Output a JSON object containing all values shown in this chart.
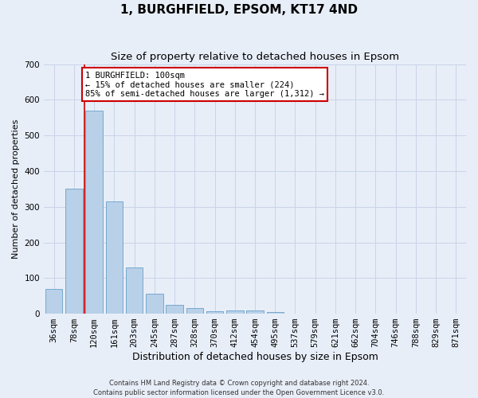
{
  "title": "1, BURGHFIELD, EPSOM, KT17 4ND",
  "subtitle": "Size of property relative to detached houses in Epsom",
  "xlabel": "Distribution of detached houses by size in Epsom",
  "ylabel": "Number of detached properties",
  "bar_values": [
    70,
    350,
    570,
    315,
    130,
    57,
    25,
    15,
    8,
    10,
    10,
    5,
    0,
    0,
    0,
    0,
    0,
    0,
    0,
    0,
    0
  ],
  "categories": [
    "36sqm",
    "78sqm",
    "120sqm",
    "161sqm",
    "203sqm",
    "245sqm",
    "287sqm",
    "328sqm",
    "370sqm",
    "412sqm",
    "454sqm",
    "495sqm",
    "537sqm",
    "579sqm",
    "621sqm",
    "662sqm",
    "704sqm",
    "746sqm",
    "788sqm",
    "829sqm",
    "871sqm"
  ],
  "bar_color": "#b8d0e8",
  "bar_edge_color": "#6aa0c8",
  "vline_color": "#cc0000",
  "annotation_text": "1 BURGHFIELD: 100sqm\n← 15% of detached houses are smaller (224)\n85% of semi-detached houses are larger (1,312) →",
  "annotation_box_color": "#ffffff",
  "annotation_box_edge": "#cc0000",
  "ylim": [
    0,
    700
  ],
  "yticks": [
    0,
    100,
    200,
    300,
    400,
    500,
    600,
    700
  ],
  "grid_color": "#c8d4e8",
  "bg_color": "#e8eef8",
  "footnote": "Contains HM Land Registry data © Crown copyright and database right 2024.\nContains public sector information licensed under the Open Government Licence v3.0.",
  "title_fontsize": 11,
  "subtitle_fontsize": 9.5,
  "xlabel_fontsize": 9,
  "ylabel_fontsize": 8,
  "tick_fontsize": 7.5,
  "footnote_fontsize": 6
}
